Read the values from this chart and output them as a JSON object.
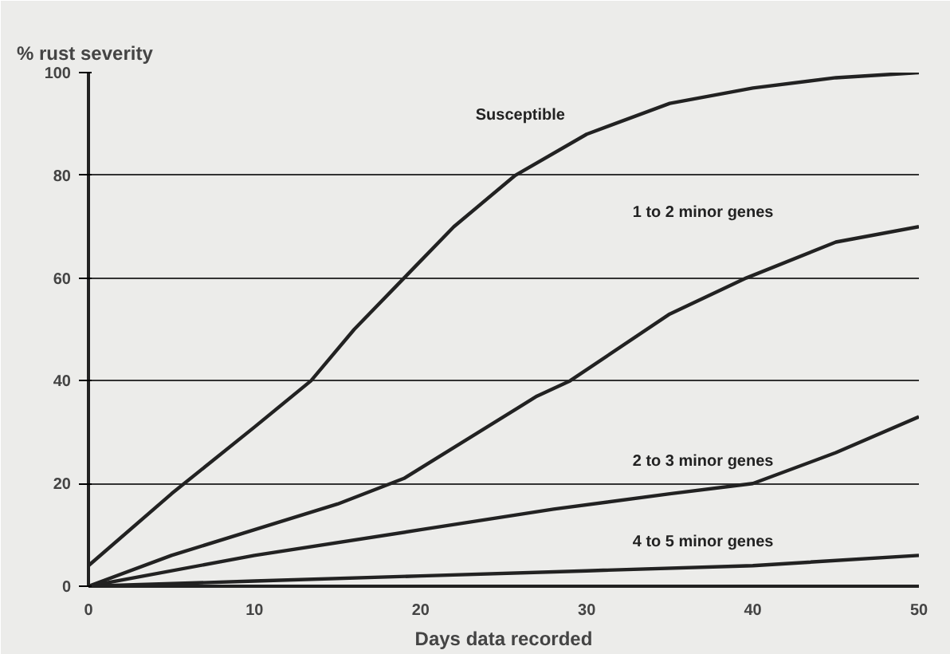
{
  "chart_data": {
    "type": "line",
    "xlabel": "Days data recorded",
    "ylabel": "% rust severity",
    "xlim": [
      0,
      50
    ],
    "ylim": [
      0,
      100
    ],
    "xticks": [
      0,
      10,
      20,
      30,
      40,
      50
    ],
    "yticks": [
      0,
      20,
      40,
      60,
      80,
      100
    ],
    "grid": "y",
    "line_style": "solid",
    "series": [
      {
        "name": "Susceptible",
        "color": "#222222",
        "x": [
          0,
          5,
          10,
          13.4,
          16,
          19,
          22,
          25.7,
          30,
          35,
          40,
          45,
          50
        ],
        "values": [
          4,
          18,
          31,
          40,
          50,
          60,
          70,
          80,
          88,
          94,
          97,
          99,
          100
        ]
      },
      {
        "name": "1 to 2 minor genes",
        "color": "#222222",
        "x": [
          0,
          5,
          10,
          15,
          19,
          22,
          27,
          29,
          35,
          39.6,
          45,
          50
        ],
        "values": [
          0,
          6,
          11,
          16,
          21,
          27,
          37,
          40,
          53,
          60,
          67,
          70
        ]
      },
      {
        "name": "2 to 3 minor genes",
        "color": "#222222",
        "x": [
          0,
          10,
          20,
          28,
          35,
          40,
          45,
          50
        ],
        "values": [
          0,
          6,
          11,
          15,
          18,
          20,
          26,
          33
        ]
      },
      {
        "name": "4 to 5 minor genes",
        "color": "#222222",
        "x": [
          0,
          10,
          20,
          30,
          40,
          50
        ],
        "values": [
          0,
          1,
          2,
          3,
          4,
          6
        ]
      }
    ]
  }
}
